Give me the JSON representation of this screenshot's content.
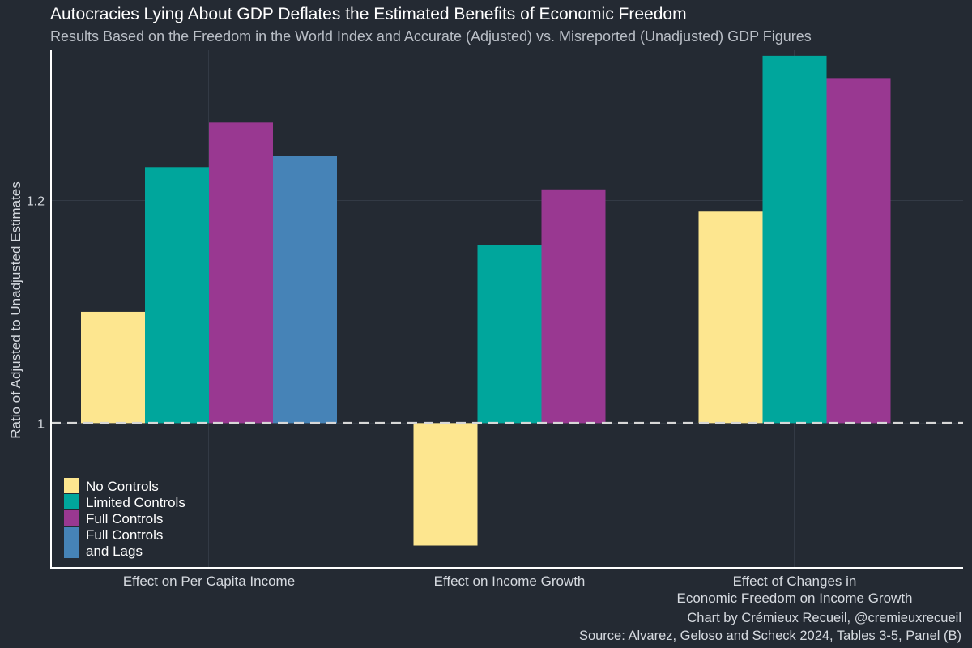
{
  "title": "Autocracies Lying About GDP Deflates the Estimated Benefits of Economic Freedom",
  "subtitle": "Results Based on the Freedom in the World Index and Accurate (Adjusted) vs. Misreported (Unadjusted) GDP Figures",
  "caption": {
    "credit": "Chart by Crémieux Recueil, @cremieuxrecueil",
    "source": "Source: Alvarez, Geloso and Scheck 2024, Tables 3-5, Panel (B)"
  },
  "colors": {
    "background": "#242a33",
    "grid": "#333a45",
    "axis": "#ffffff",
    "reference": "#d7d7d7",
    "series": [
      "#fde68f",
      "#00a69c",
      "#993891",
      "#4683b7"
    ]
  },
  "chart_data": {
    "type": "bar",
    "title": "Autocracies Lying About GDP Deflates the Estimated Benefits of Economic Freedom",
    "subtitle": "Results Based on the Freedom in the World Index and Accurate (Adjusted) vs. Misreported (Unadjusted) GDP Figures",
    "xlabel": "",
    "ylabel": "Ratio of Adjusted to Unadjusted Estimates",
    "ylim": [
      0.87,
      1.335
    ],
    "yticks": [
      1,
      1.2
    ],
    "ytick_labels": [
      "1",
      "1.2"
    ],
    "reference_line": 1,
    "baseline": 1,
    "grid": true,
    "legend_position": "bottom-left",
    "categories": [
      [
        "Effect on Per Capita Income"
      ],
      [
        "Effect on Income Growth"
      ],
      [
        "Effect of Changes in",
        "Economic Freedom on Income Growth"
      ]
    ],
    "series": [
      {
        "name": "No Controls",
        "legend_lines": [
          "No Controls"
        ],
        "values": [
          1.1,
          0.89,
          1.19
        ]
      },
      {
        "name": "Limited Controls",
        "legend_lines": [
          "Limited Controls"
        ],
        "values": [
          1.23,
          1.16,
          1.33
        ]
      },
      {
        "name": "Full Controls",
        "legend_lines": [
          "Full Controls"
        ],
        "values": [
          1.27,
          1.21,
          1.31
        ]
      },
      {
        "name": "Full Controls and Lags",
        "legend_lines": [
          "Full Controls",
          "and Lags"
        ],
        "values": [
          1.24,
          null,
          null
        ]
      }
    ]
  }
}
